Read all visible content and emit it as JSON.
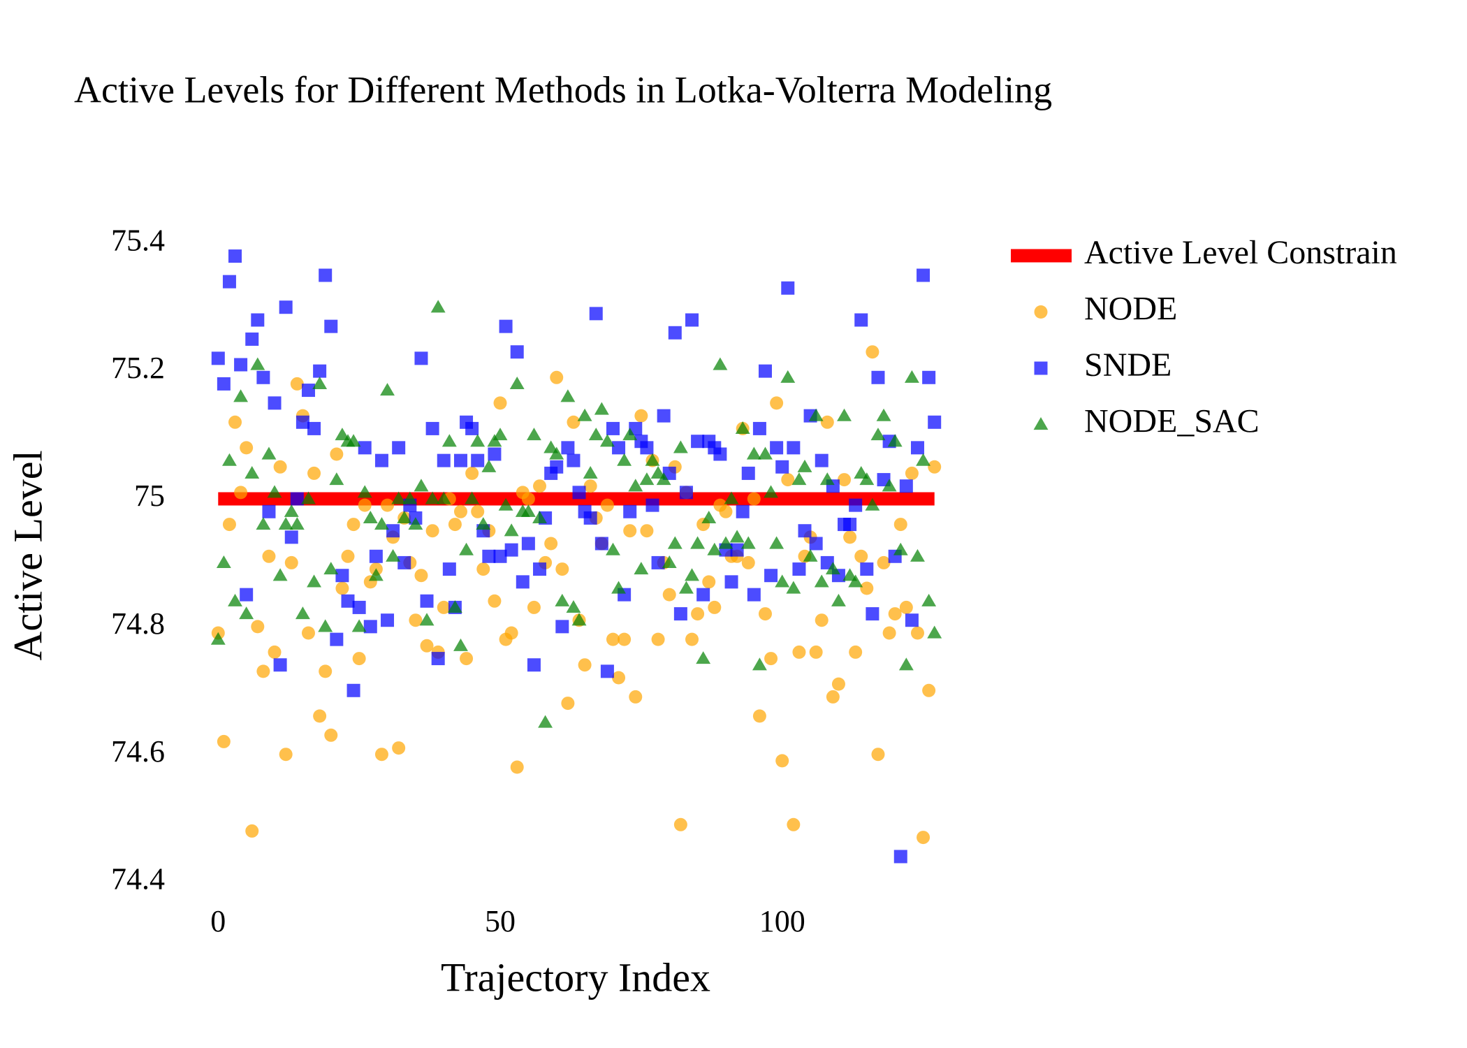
{
  "chart_data": {
    "type": "scatter",
    "title": "Active Levels for Different Methods in Lotka-Volterra Modeling",
    "xlabel": "Trajectory Index",
    "ylabel": "Active Level",
    "xlim": [
      -4,
      131
    ],
    "xticks": [
      0,
      50,
      100
    ],
    "ylim": [
      74.37,
      75.42
    ],
    "yticks": [
      74.4,
      74.6,
      74.8,
      75,
      75.2,
      75.4
    ],
    "grid": false,
    "legend": "outside-right",
    "x": [
      0,
      1,
      2,
      3,
      4,
      5,
      6,
      7,
      8,
      9,
      10,
      11,
      12,
      13,
      14,
      15,
      16,
      17,
      18,
      19,
      20,
      21,
      22,
      23,
      24,
      25,
      26,
      27,
      28,
      29,
      30,
      31,
      32,
      33,
      34,
      35,
      36,
      37,
      38,
      39,
      40,
      41,
      42,
      43,
      44,
      45,
      46,
      47,
      48,
      49,
      50,
      51,
      52,
      53,
      54,
      55,
      56,
      57,
      58,
      59,
      60,
      61,
      62,
      63,
      64,
      65,
      66,
      67,
      68,
      69,
      70,
      71,
      72,
      73,
      74,
      75,
      76,
      77,
      78,
      79,
      80,
      81,
      82,
      83,
      84,
      85,
      86,
      87,
      88,
      89,
      90,
      91,
      92,
      93,
      94,
      95,
      96,
      97,
      98,
      99,
      100,
      101,
      102,
      103,
      104,
      105,
      106,
      107,
      108,
      109,
      110,
      111,
      112,
      113,
      114,
      115,
      116,
      117,
      118,
      119,
      120,
      121,
      122,
      123,
      124,
      125,
      126,
      127
    ],
    "series": [
      {
        "name": "Active Level Constrain",
        "mode": "line",
        "color": "#ff0000",
        "x": [
          0,
          127
        ],
        "values": [
          75,
          75
        ]
      },
      {
        "name": "NODE",
        "mode": "markers",
        "marker": "circle",
        "color": "#ffa500",
        "values": [
          74.79,
          74.62,
          74.96,
          75.12,
          75.01,
          75.08,
          74.48,
          74.8,
          74.73,
          74.91,
          74.76,
          75.05,
          74.6,
          74.9,
          75.18,
          75.13,
          74.79,
          75.04,
          74.66,
          74.73,
          74.63,
          75.07,
          74.86,
          74.91,
          74.96,
          74.75,
          74.99,
          74.87,
          74.89,
          74.6,
          74.99,
          74.94,
          74.61,
          74.97,
          74.9,
          74.81,
          74.88,
          74.77,
          74.95,
          74.76,
          74.83,
          75.0,
          74.96,
          74.98,
          74.75,
          75.04,
          74.98,
          74.89,
          74.95,
          74.84,
          75.15,
          74.78,
          74.79,
          74.58,
          75.01,
          75.0,
          74.83,
          75.02,
          74.9,
          74.93,
          75.19,
          74.89,
          74.68,
          75.12,
          74.81,
          74.74,
          75.02,
          74.97,
          74.93,
          74.99,
          74.78,
          74.72,
          74.78,
          74.95,
          74.69,
          75.13,
          74.95,
          75.06,
          74.78,
          74.9,
          74.85,
          75.05,
          74.49,
          75.01,
          74.78,
          74.82,
          74.96,
          74.87,
          74.83,
          74.99,
          74.98,
          74.91,
          74.91,
          75.11,
          74.9,
          75.0,
          74.66,
          74.82,
          74.75,
          75.15,
          74.59,
          75.03,
          74.49,
          74.76,
          74.91,
          74.94,
          74.76,
          74.81,
          75.12,
          74.69,
          74.71,
          75.03,
          74.94,
          74.76,
          74.91,
          74.86,
          75.23,
          74.6,
          74.9,
          74.79,
          74.82,
          74.96,
          74.83,
          75.04,
          74.79,
          74.47,
          74.7,
          75.05
        ]
      },
      {
        "name": "SNDE",
        "mode": "markers",
        "marker": "square",
        "color": "#0000ff",
        "values": [
          75.22,
          75.18,
          75.34,
          75.38,
          75.21,
          74.85,
          75.25,
          75.28,
          75.19,
          74.98,
          75.15,
          74.74,
          75.3,
          74.94,
          75.0,
          75.12,
          75.17,
          75.11,
          75.2,
          75.35,
          75.27,
          74.78,
          74.88,
          74.84,
          74.7,
          74.83,
          75.08,
          74.8,
          74.91,
          75.06,
          74.81,
          74.95,
          75.08,
          74.9,
          74.99,
          74.97,
          75.22,
          74.84,
          75.11,
          74.75,
          75.06,
          74.89,
          74.83,
          75.06,
          75.12,
          75.11,
          75.06,
          74.95,
          74.91,
          75.07,
          74.91,
          75.27,
          74.92,
          75.23,
          74.87,
          74.93,
          74.74,
          74.89,
          74.97,
          75.04,
          75.05,
          74.8,
          75.08,
          75.06,
          75.01,
          74.98,
          74.97,
          75.29,
          74.93,
          74.73,
          75.11,
          75.08,
          74.85,
          74.98,
          75.11,
          75.09,
          75.08,
          74.99,
          74.9,
          75.13,
          75.04,
          75.26,
          74.82,
          75.01,
          75.28,
          75.09,
          74.85,
          75.09,
          75.08,
          75.07,
          74.92,
          74.87,
          74.92,
          74.98,
          75.04,
          74.85,
          75.11,
          75.2,
          74.88,
          75.08,
          75.05,
          75.33,
          75.08,
          74.89,
          74.95,
          75.13,
          74.93,
          75.06,
          74.9,
          75.02,
          74.88,
          74.96,
          74.96,
          74.99,
          75.28,
          74.89,
          74.82,
          75.19,
          75.03,
          75.09,
          74.91,
          74.44,
          75.02,
          74.81,
          75.08,
          75.35,
          75.19,
          75.12
        ]
      },
      {
        "name": "NODE_SAC",
        "mode": "markers",
        "marker": "triangle",
        "color": "#008000",
        "values": [
          74.78,
          74.9,
          75.06,
          74.84,
          75.16,
          74.82,
          75.04,
          75.21,
          74.96,
          75.07,
          75.01,
          74.88,
          74.96,
          74.98,
          74.96,
          74.82,
          75.0,
          74.87,
          75.18,
          74.8,
          74.89,
          75.03,
          75.1,
          75.09,
          75.09,
          74.8,
          75.01,
          74.97,
          74.88,
          74.96,
          75.17,
          74.91,
          75.0,
          74.97,
          75.0,
          74.96,
          75.02,
          74.81,
          75.0,
          75.3,
          75.0,
          75.09,
          74.83,
          74.77,
          74.92,
          75.0,
          75.09,
          74.96,
          75.05,
          75.09,
          75.1,
          74.99,
          74.95,
          75.18,
          74.98,
          74.98,
          75.1,
          74.97,
          74.65,
          75.08,
          75.07,
          74.84,
          75.16,
          74.83,
          74.81,
          75.13,
          75.04,
          75.1,
          75.14,
          75.09,
          74.92,
          74.86,
          75.06,
          75.1,
          75.02,
          74.89,
          75.03,
          75.06,
          75.04,
          75.03,
          74.9,
          74.93,
          75.08,
          74.86,
          74.88,
          74.93,
          74.75,
          74.97,
          74.92,
          75.21,
          74.93,
          75.0,
          74.94,
          75.11,
          74.93,
          75.07,
          74.74,
          75.07,
          75.01,
          74.93,
          74.87,
          75.19,
          74.86,
          75.03,
          75.05,
          74.91,
          75.13,
          74.87,
          75.03,
          74.89,
          74.84,
          75.13,
          74.88,
          74.87,
          75.04,
          75.03,
          74.99,
          75.1,
          75.13,
          75.02,
          75.09,
          74.92,
          74.74,
          75.19,
          74.91,
          75.06,
          74.84,
          74.79
        ]
      }
    ]
  }
}
